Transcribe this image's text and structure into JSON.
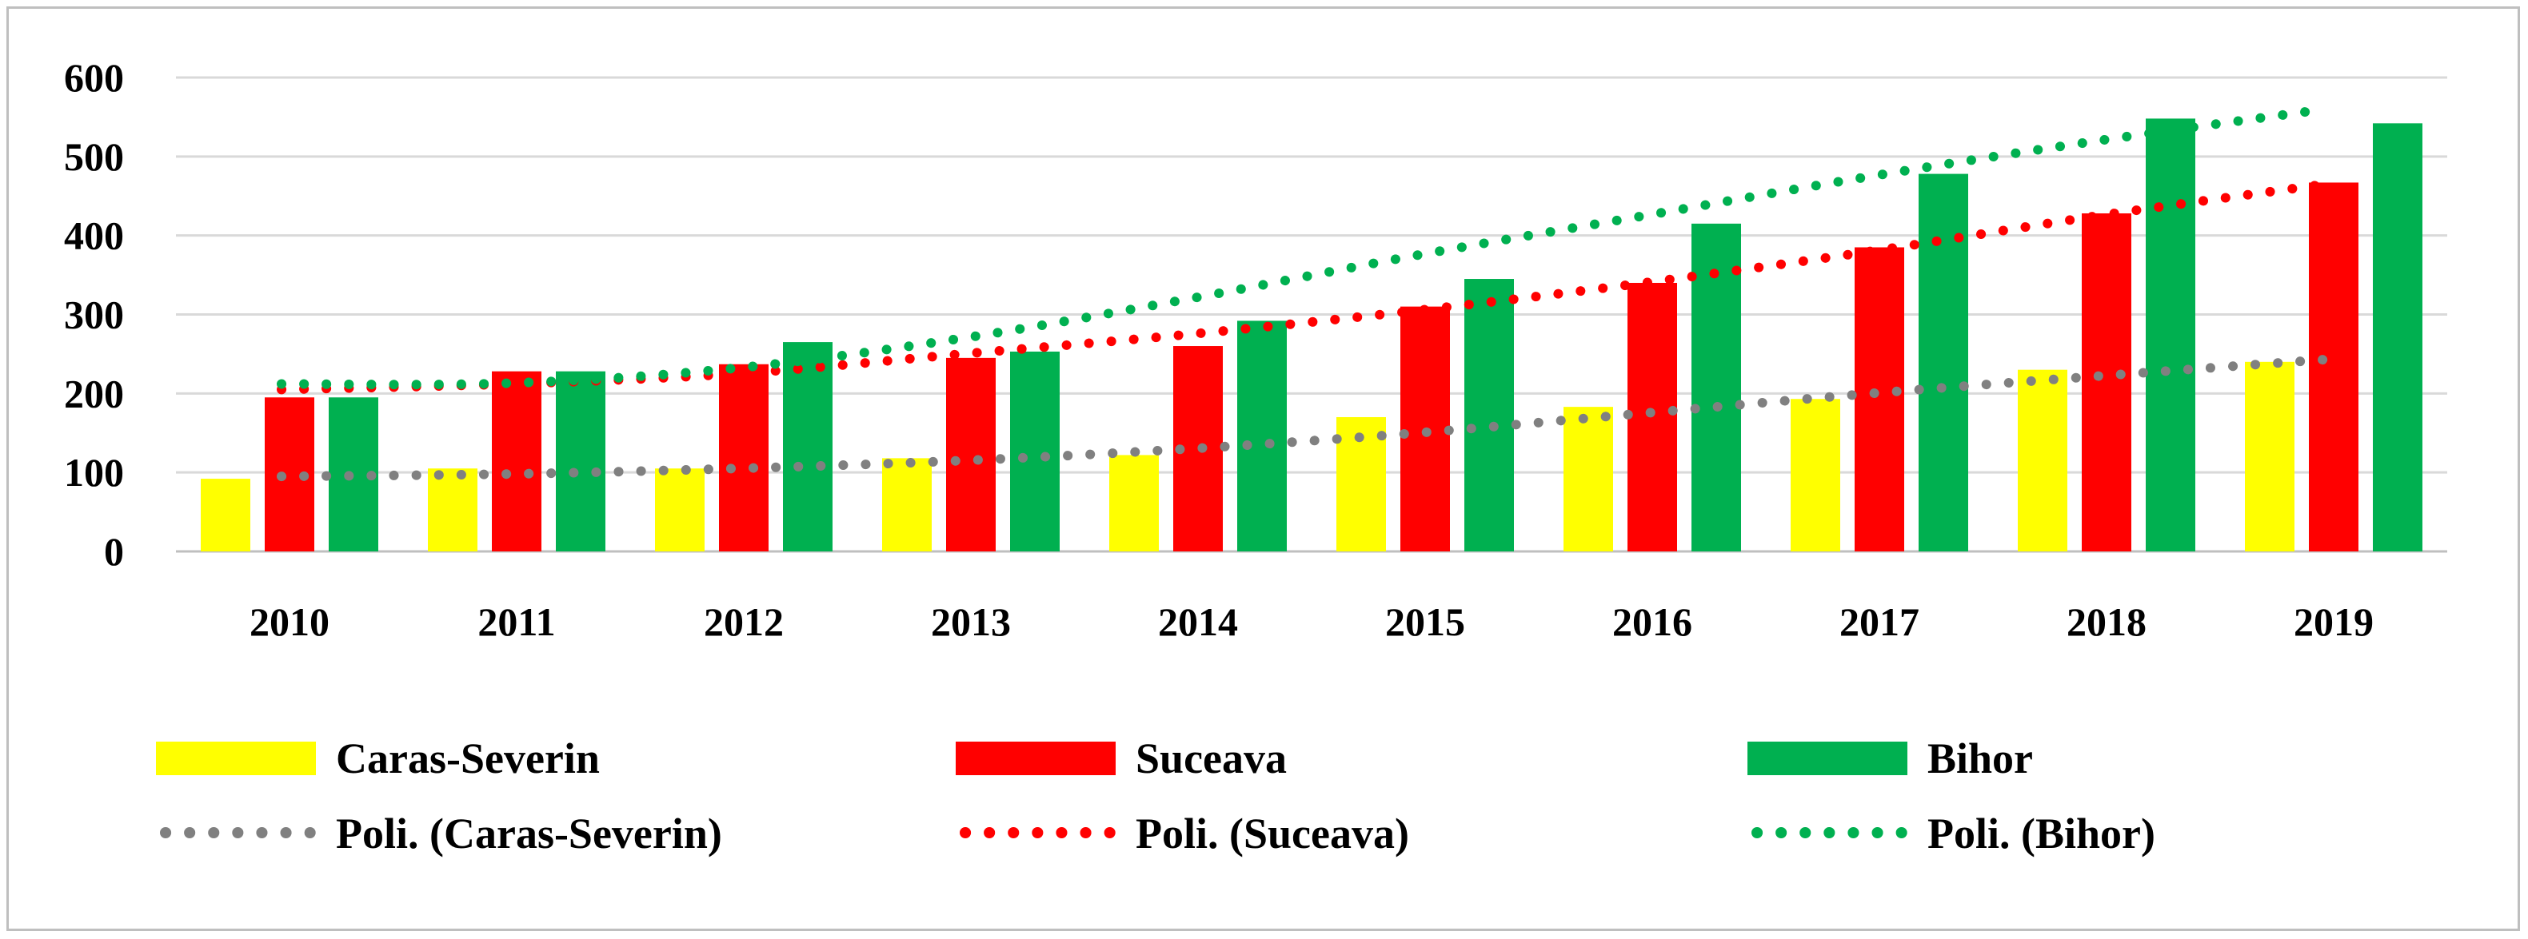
{
  "chart_data": {
    "type": "bar",
    "title": "",
    "xlabel": "",
    "ylabel": "",
    "ylim": [
      0,
      600
    ],
    "yticks": [
      "0",
      "100",
      "200",
      "300",
      "400",
      "500",
      "600"
    ],
    "grid": true,
    "legend_position": "bottom",
    "categories": [
      "2010",
      "2011",
      "2012",
      "2013",
      "2014",
      "2015",
      "2016",
      "2017",
      "2018",
      "2019"
    ],
    "series": [
      {
        "name": "Caras-Severin",
        "color": "#ffff00",
        "values": [
          92,
          105,
          105,
          118,
          122,
          170,
          183,
          193,
          230,
          240
        ]
      },
      {
        "name": "Suceava",
        "color": "#ff0000",
        "values": [
          195,
          228,
          237,
          245,
          260,
          310,
          340,
          385,
          428,
          467
        ]
      },
      {
        "name": "Bihor",
        "color": "#00b050",
        "values": [
          195,
          228,
          265,
          253,
          292,
          345,
          415,
          478,
          548,
          542
        ]
      }
    ],
    "trendlines": [
      {
        "name": "Poli. (Caras-Severin)",
        "color": "#808080",
        "values": [
          95,
          98,
          105,
          115,
          130,
          150,
          175,
          200,
          222,
          243
        ]
      },
      {
        "name": "Poli. (Suceava)",
        "color": "#ff0000",
        "values": [
          205,
          212,
          225,
          250,
          275,
          305,
          340,
          380,
          425,
          465
        ]
      },
      {
        "name": "Poli. (Bihor)",
        "color": "#00b050",
        "values": [
          212,
          213,
          232,
          270,
          320,
          375,
          425,
          475,
          520,
          560
        ]
      }
    ]
  }
}
